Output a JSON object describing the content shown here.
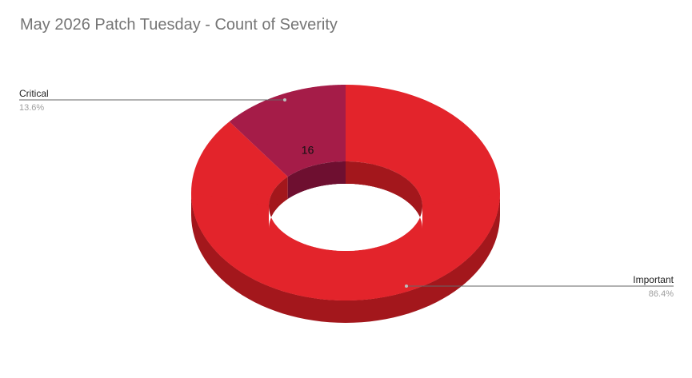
{
  "chart_data": {
    "type": "pie",
    "style": "3d-donut",
    "title": "May 2026 Patch Tuesday - Count of Severity",
    "legend": "callouts",
    "slices": [
      {
        "label": "Important",
        "value": 102,
        "percent_label": "86.4%",
        "color": "#e3242b",
        "side_color": "#a3171c"
      },
      {
        "label": "Critical",
        "value": 16,
        "percent_label": "13.6%",
        "color": "#a51c48",
        "side_color": "#6e0f30"
      }
    ]
  }
}
